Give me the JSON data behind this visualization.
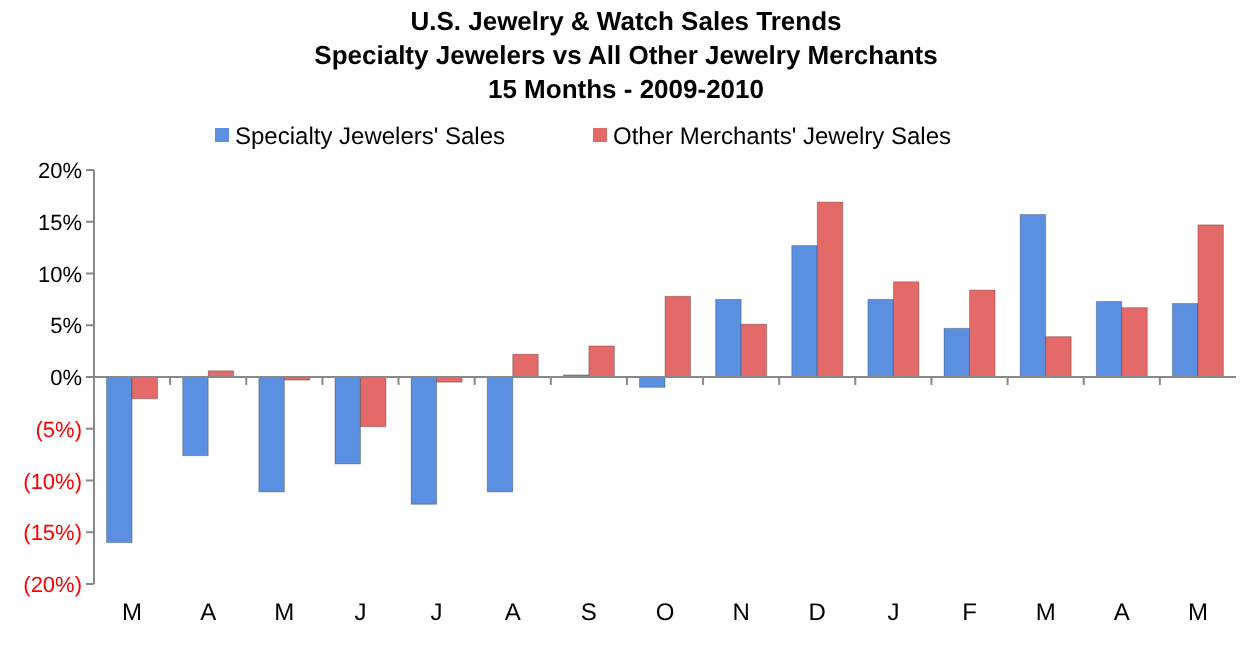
{
  "chart_data": {
    "type": "bar",
    "title": "U.S. Jewelry & Watch Sales Trends",
    "subtitle": "Specialty Jewelers vs All Other Jewelry Merchants\n15 Months - 2009-2010",
    "categories": [
      "M",
      "A",
      "M",
      "J",
      "J",
      "A",
      "S",
      "O",
      "N",
      "D",
      "J",
      "F",
      "M",
      "A",
      "M"
    ],
    "series": [
      {
        "name": "Specialty Jewelers' Sales",
        "color": "#5b8fe0",
        "values": [
          -16.0,
          -7.6,
          -11.1,
          -8.4,
          -12.3,
          -11.1,
          0.2,
          -1.0,
          7.5,
          12.7,
          7.5,
          4.7,
          15.7,
          7.3,
          7.1
        ]
      },
      {
        "name": "Other Merchants' Jewelry Sales",
        "color": "#e46a6a",
        "values": [
          -2.1,
          0.6,
          -0.3,
          -4.8,
          -0.5,
          2.2,
          3.0,
          7.8,
          5.1,
          16.9,
          9.2,
          8.4,
          3.9,
          6.7,
          14.7
        ]
      }
    ],
    "ylim": [
      -20,
      20
    ],
    "yticks": [
      {
        "value": -20,
        "label": "(20%)"
      },
      {
        "value": -15,
        "label": "(15%)"
      },
      {
        "value": -10,
        "label": "(10%)"
      },
      {
        "value": -5,
        "label": "(5%)"
      },
      {
        "value": 0,
        "label": "0%"
      },
      {
        "value": 5,
        "label": "5%"
      },
      {
        "value": 10,
        "label": "10%"
      },
      {
        "value": 15,
        "label": "15%"
      },
      {
        "value": 20,
        "label": "20%"
      }
    ],
    "legend": "top"
  }
}
